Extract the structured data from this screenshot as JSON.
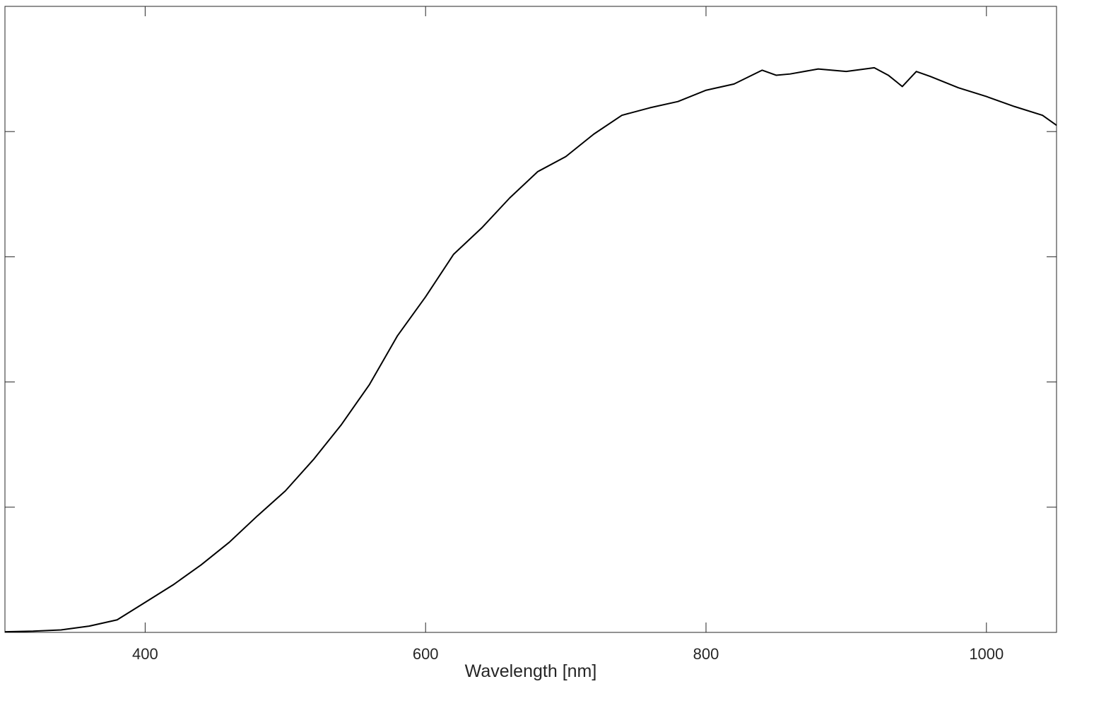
{
  "chart_data": {
    "type": "line",
    "xlabel": "Wavelength [nm]",
    "x": [
      300,
      320,
      340,
      360,
      380,
      400,
      420,
      440,
      460,
      480,
      500,
      520,
      540,
      560,
      580,
      600,
      620,
      640,
      660,
      680,
      700,
      720,
      740,
      760,
      780,
      800,
      820,
      840,
      850,
      860,
      880,
      900,
      920,
      930,
      940,
      950,
      960,
      980,
      1000,
      1020,
      1040,
      1050
    ],
    "series": [
      {
        "color": "#000000",
        "values": [
          0.005,
          0.01,
          0.02,
          0.05,
          0.1,
          0.24,
          0.38,
          0.54,
          0.72,
          0.93,
          1.13,
          1.38,
          1.66,
          1.98,
          2.37,
          2.68,
          3.02,
          3.23,
          3.47,
          3.68,
          3.8,
          3.98,
          4.13,
          4.19,
          4.24,
          4.33,
          4.38,
          4.49,
          4.45,
          4.46,
          4.5,
          4.48,
          4.51,
          4.45,
          4.36,
          4.48,
          4.44,
          4.35,
          4.28,
          4.2,
          4.13,
          4.05
        ]
      }
    ],
    "xlim": [
      300,
      1050
    ],
    "xticks": [
      400,
      600,
      800,
      1000
    ],
    "ylim": [
      0,
      5
    ],
    "yticks": [
      0,
      1,
      2,
      3,
      4,
      5
    ],
    "show_ytick_labels": false,
    "mirror_ticks": true
  }
}
